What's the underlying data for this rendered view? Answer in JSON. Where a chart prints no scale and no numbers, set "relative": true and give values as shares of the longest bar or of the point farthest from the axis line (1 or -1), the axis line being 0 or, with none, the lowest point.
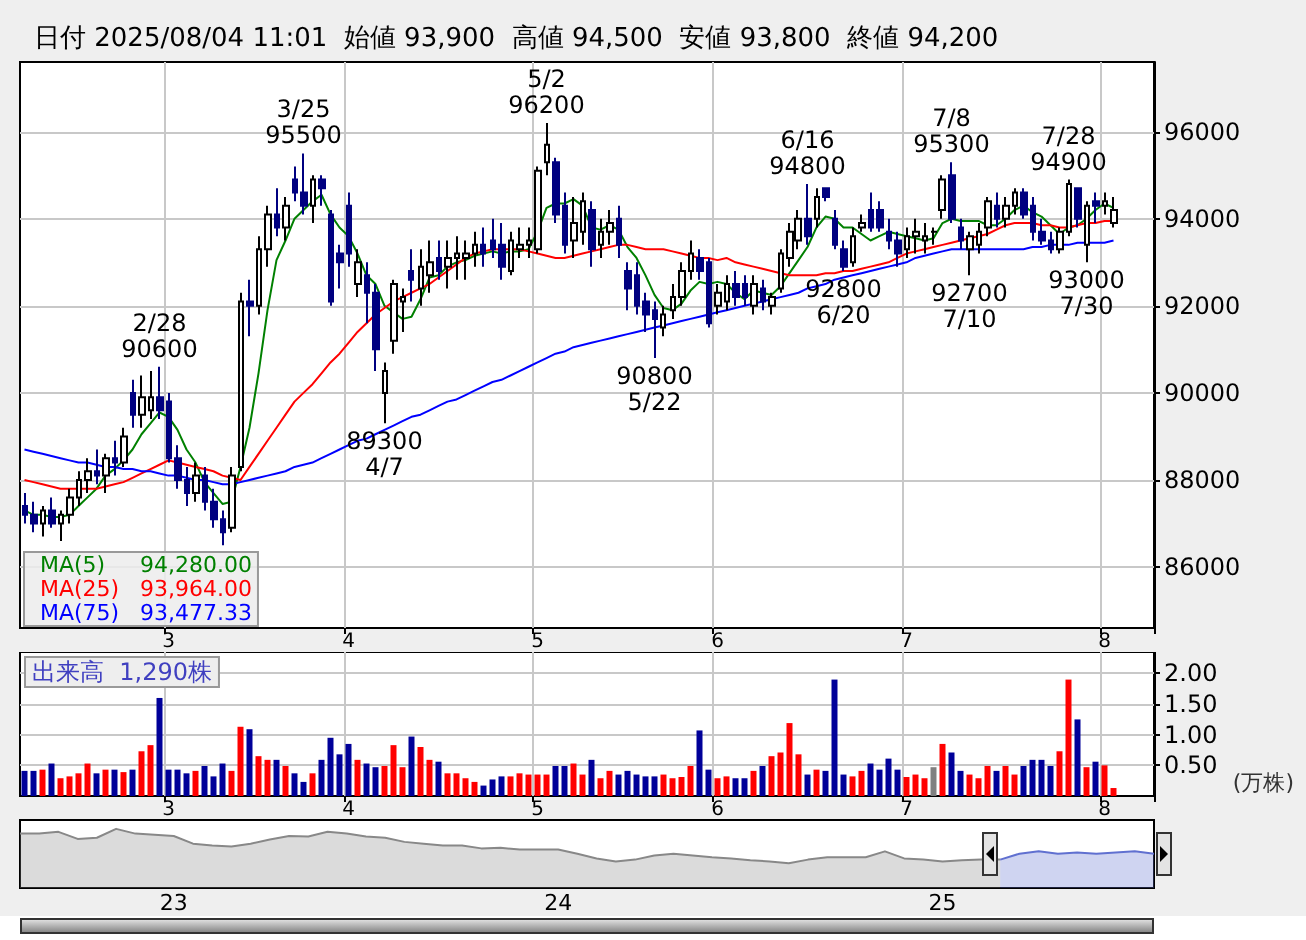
{
  "chart_data": [
    {
      "type": "candlestick",
      "title": "日付 2025/08/04 11:01  始値 93,900  高値 94,500  安値 93,800  終値 94,200",
      "categories": [
        null,
        null,
        null,
        null,
        null,
        null,
        null,
        null,
        null,
        null,
        null,
        null,
        null,
        null,
        null,
        null,
        "3",
        null,
        null,
        null,
        null,
        null,
        null,
        null,
        null,
        null,
        null,
        null,
        null,
        null,
        null,
        null,
        null,
        null,
        null,
        null,
        "4",
        null,
        null,
        null,
        null,
        null,
        null,
        null,
        null,
        null,
        null,
        null,
        null,
        null,
        null,
        null,
        null,
        null,
        null,
        null,
        null,
        "5",
        null,
        null,
        null,
        null,
        null,
        null,
        null,
        null,
        null,
        null,
        null,
        null,
        null,
        null,
        null,
        null,
        null,
        null,
        null,
        "6",
        null,
        null,
        null,
        null,
        null,
        null,
        null,
        null,
        null,
        null,
        null,
        null,
        null,
        null,
        null,
        null,
        null,
        null,
        null,
        null,
        "7",
        null,
        null,
        null,
        null,
        null,
        null,
        null,
        null,
        null,
        null,
        null,
        null,
        null,
        null,
        null,
        null,
        null,
        null,
        null,
        null,
        null,
        "8",
        null
      ],
      "ohlc": [
        [
          87400,
          87700,
          87000,
          87200
        ],
        [
          87200,
          87500,
          86800,
          87000
        ],
        [
          87000,
          87400,
          86700,
          87300
        ],
        [
          87300,
          87600,
          86900,
          87000
        ],
        [
          87000,
          87300,
          86600,
          87200
        ],
        [
          87200,
          87800,
          87000,
          87600
        ],
        [
          87600,
          88200,
          87400,
          88000
        ],
        [
          88000,
          88500,
          87700,
          88200
        ],
        [
          88200,
          88700,
          87900,
          88100
        ],
        [
          88100,
          88600,
          87700,
          88500
        ],
        [
          88500,
          88900,
          88100,
          88400
        ],
        [
          88400,
          89200,
          88300,
          89000
        ],
        [
          90000,
          90300,
          89200,
          89500
        ],
        [
          89500,
          90400,
          89200,
          89900
        ],
        [
          89600,
          90500,
          89400,
          89900
        ],
        [
          89900,
          90600,
          89400,
          89600
        ],
        [
          89800,
          90000,
          88400,
          88500
        ],
        [
          88500,
          88800,
          87800,
          88000
        ],
        [
          88000,
          88300,
          87400,
          87700
        ],
        [
          87700,
          88400,
          87500,
          88100
        ],
        [
          88100,
          88300,
          87300,
          87500
        ],
        [
          87500,
          87800,
          86900,
          87100
        ],
        [
          87100,
          87300,
          86500,
          86800
        ],
        [
          86900,
          88300,
          86800,
          88100
        ],
        [
          88300,
          92300,
          88200,
          92100
        ],
        [
          92100,
          92600,
          91300,
          92000
        ],
        [
          92000,
          93600,
          91800,
          93300
        ],
        [
          93300,
          94300,
          92900,
          94100
        ],
        [
          94100,
          94700,
          93600,
          93800
        ],
        [
          93800,
          94500,
          93500,
          94300
        ],
        [
          94900,
          95200,
          94400,
          94600
        ],
        [
          94600,
          95500,
          94100,
          94300
        ],
        [
          94300,
          95000,
          93900,
          94900
        ],
        [
          94900,
          95000,
          94300,
          94700
        ],
        [
          94100,
          94200,
          92000,
          92100
        ],
        [
          93200,
          93400,
          92400,
          93000
        ],
        [
          94300,
          94600,
          92900,
          93200
        ],
        [
          92500,
          93300,
          92200,
          93000
        ],
        [
          92700,
          93000,
          91600,
          92300
        ],
        [
          92300,
          92500,
          90500,
          91000
        ],
        [
          90000,
          90700,
          89300,
          90500
        ],
        [
          91200,
          92600,
          90900,
          92500
        ],
        [
          92100,
          92400,
          91400,
          92200
        ],
        [
          92800,
          93300,
          92100,
          92600
        ],
        [
          92400,
          93300,
          92000,
          92900
        ],
        [
          92700,
          93500,
          92300,
          93000
        ],
        [
          93100,
          93500,
          92600,
          92800
        ],
        [
          92900,
          93500,
          92400,
          93100
        ],
        [
          93100,
          93600,
          92600,
          93200
        ],
        [
          93100,
          93500,
          92600,
          93200
        ],
        [
          93200,
          93700,
          92900,
          93400
        ],
        [
          93400,
          93800,
          92900,
          93200
        ],
        [
          93500,
          94000,
          93100,
          93300
        ],
        [
          93400,
          93900,
          92600,
          92900
        ],
        [
          92800,
          93700,
          92700,
          93500
        ],
        [
          93300,
          93800,
          93100,
          93400
        ],
        [
          93400,
          93800,
          93100,
          93500
        ],
        [
          93300,
          95200,
          93200,
          95100
        ],
        [
          95300,
          96200,
          95000,
          95700
        ],
        [
          95300,
          95400,
          93900,
          94100
        ],
        [
          94300,
          94600,
          93200,
          93400
        ],
        [
          93500,
          94500,
          93100,
          93900
        ],
        [
          93700,
          94600,
          93400,
          94400
        ],
        [
          94200,
          94400,
          92900,
          93300
        ],
        [
          93400,
          94000,
          93100,
          93700
        ],
        [
          93700,
          94200,
          93400,
          93900
        ],
        [
          94000,
          94300,
          93100,
          93400
        ],
        [
          92800,
          93000,
          91900,
          92400
        ],
        [
          92700,
          93000,
          91800,
          92000
        ],
        [
          92100,
          92300,
          91400,
          91800
        ],
        [
          91900,
          92100,
          90800,
          91700
        ],
        [
          91500,
          92000,
          91300,
          91800
        ],
        [
          91900,
          92500,
          91700,
          92200
        ],
        [
          92200,
          93000,
          92000,
          92800
        ],
        [
          92800,
          93500,
          92600,
          93200
        ],
        [
          93100,
          93300,
          92600,
          92800
        ],
        [
          93000,
          93100,
          91500,
          91600
        ],
        [
          92000,
          92500,
          91800,
          92300
        ],
        [
          92100,
          92700,
          91900,
          92500
        ],
        [
          92500,
          92800,
          92000,
          92200
        ],
        [
          92500,
          92700,
          92000,
          92200
        ],
        [
          92000,
          92700,
          91800,
          92500
        ],
        [
          92400,
          92600,
          91900,
          92100
        ],
        [
          92000,
          92300,
          91800,
          92200
        ],
        [
          92400,
          93300,
          92300,
          93200
        ],
        [
          93100,
          93900,
          92900,
          93700
        ],
        [
          93500,
          94200,
          93300,
          94000
        ],
        [
          94000,
          94800,
          93400,
          93600
        ],
        [
          94000,
          94700,
          93800,
          94500
        ],
        [
          94700,
          94700,
          94400,
          94500
        ],
        [
          94000,
          94200,
          93300,
          93400
        ],
        [
          93300,
          93500,
          92800,
          92900
        ],
        [
          93000,
          93800,
          92900,
          93600
        ],
        [
          93800,
          94100,
          93700,
          93900
        ],
        [
          94200,
          94600,
          93700,
          93800
        ],
        [
          94200,
          94400,
          93700,
          93800
        ],
        [
          93700,
          94000,
          93300,
          93500
        ],
        [
          93500,
          93700,
          92900,
          93200
        ],
        [
          93300,
          93800,
          93100,
          93600
        ],
        [
          93600,
          94000,
          93200,
          93700
        ],
        [
          93500,
          93900,
          93200,
          93600
        ],
        [
          93700,
          93800,
          93400,
          93700
        ],
        [
          94200,
          95000,
          94000,
          94900
        ],
        [
          95000,
          95300,
          93900,
          94000
        ],
        [
          93800,
          94000,
          93300,
          93500
        ],
        [
          93300,
          93700,
          92700,
          93600
        ],
        [
          93400,
          93900,
          93200,
          93700
        ],
        [
          93800,
          94500,
          93600,
          94400
        ],
        [
          94300,
          94600,
          93800,
          94000
        ],
        [
          94000,
          94500,
          93800,
          94300
        ],
        [
          94300,
          94700,
          94100,
          94600
        ],
        [
          94600,
          94700,
          94000,
          94100
        ],
        [
          94300,
          94500,
          93500,
          93700
        ],
        [
          93700,
          94000,
          93400,
          93500
        ],
        [
          93500,
          93700,
          93200,
          93300
        ],
        [
          93300,
          93800,
          93200,
          93700
        ],
        [
          93700,
          94900,
          93600,
          94800
        ],
        [
          94700,
          94700,
          93800,
          94000
        ],
        [
          93400,
          94400,
          93000,
          94300
        ],
        [
          94400,
          94600,
          93900,
          94300
        ],
        [
          94300,
          94600,
          94100,
          94400
        ],
        [
          93900,
          94500,
          93800,
          94200
        ]
      ],
      "series": [
        {
          "name": "MA(5)",
          "type": "line",
          "color": "#008000",
          "values": [
            87300,
            87200,
            87200,
            87150,
            87150,
            87200,
            87400,
            87600,
            87800,
            88100,
            88250,
            88450,
            88700,
            89050,
            89300,
            89550,
            89450,
            89150,
            88700,
            88400,
            87950,
            87700,
            87450,
            87500,
            88300,
            89200,
            90450,
            91900,
            93050,
            93500,
            94000,
            94200,
            94400,
            94550,
            94100,
            93800,
            93600,
            93200,
            92700,
            92500,
            92000,
            91850,
            91700,
            91750,
            92150,
            92650,
            92700,
            92900,
            93000,
            93050,
            93150,
            93200,
            93250,
            93200,
            93250,
            93250,
            93300,
            93700,
            94250,
            94350,
            94350,
            94450,
            94300,
            93800,
            93750,
            93850,
            93750,
            93350,
            93100,
            92700,
            92250,
            91950,
            91900,
            92050,
            92350,
            92550,
            92500,
            92550,
            92500,
            92300,
            92150,
            92350,
            92300,
            92250,
            92450,
            92750,
            93050,
            93350,
            93800,
            94050,
            94000,
            93800,
            93800,
            93650,
            93500,
            93600,
            93700,
            93650,
            93600,
            93550,
            93500,
            93550,
            93900,
            94000,
            93950,
            93950,
            93950,
            93850,
            93850,
            94000,
            94200,
            94300,
            94150,
            94050,
            93850,
            93650,
            93800,
            93850,
            94000,
            94200,
            94350,
            94250
          ]
        },
        {
          "name": "MA(25)",
          "type": "line",
          "color": "#ff0000",
          "values": [
            88000,
            87950,
            87900,
            87850,
            87800,
            87800,
            87800,
            87800,
            87800,
            87850,
            87900,
            87950,
            88050,
            88150,
            88250,
            88350,
            88450,
            88400,
            88350,
            88300,
            88250,
            88200,
            88100,
            88050,
            88000,
            88300,
            88600,
            88900,
            89200,
            89500,
            89800,
            90000,
            90200,
            90450,
            90700,
            90900,
            91150,
            91400,
            91600,
            91800,
            91950,
            92100,
            92200,
            92300,
            92400,
            92500,
            92650,
            92800,
            92950,
            93100,
            93200,
            93250,
            93300,
            93300,
            93300,
            93300,
            93250,
            93200,
            93150,
            93100,
            93100,
            93150,
            93200,
            93250,
            93300,
            93350,
            93400,
            93400,
            93350,
            93300,
            93300,
            93300,
            93250,
            93200,
            93150,
            93100,
            93100,
            93050,
            93100,
            93000,
            92950,
            92900,
            92850,
            92800,
            92750,
            92700,
            92700,
            92700,
            92700,
            92750,
            92750,
            92800,
            92800,
            92850,
            92900,
            92950,
            93000,
            93100,
            93200,
            93250,
            93300,
            93350,
            93400,
            93450,
            93500,
            93550,
            93600,
            93650,
            93750,
            93850,
            93900,
            93900,
            93900,
            93850,
            93850,
            93800,
            93800,
            93850,
            93900,
            93900,
            93950,
            93950
          ]
        },
        {
          "name": "MA(75)",
          "type": "line",
          "color": "#0000ff",
          "values": [
            88700,
            88650,
            88600,
            88550,
            88500,
            88450,
            88400,
            88400,
            88350,
            88300,
            88300,
            88250,
            88250,
            88200,
            88200,
            88150,
            88100,
            88100,
            88050,
            88000,
            88000,
            87950,
            87900,
            87900,
            87950,
            88000,
            88050,
            88100,
            88150,
            88200,
            88300,
            88350,
            88400,
            88500,
            88600,
            88700,
            88800,
            88900,
            88950,
            89050,
            89150,
            89250,
            89350,
            89450,
            89500,
            89600,
            89700,
            89800,
            89850,
            89950,
            90050,
            90150,
            90250,
            90300,
            90400,
            90500,
            90600,
            90700,
            90800,
            90900,
            90950,
            91050,
            91100,
            91150,
            91200,
            91250,
            91300,
            91350,
            91400,
            91450,
            91500,
            91550,
            91600,
            91650,
            91700,
            91750,
            91800,
            91850,
            91900,
            91950,
            92000,
            92050,
            92100,
            92150,
            92200,
            92250,
            92300,
            92400,
            92450,
            92500,
            92600,
            92650,
            92700,
            92750,
            92800,
            92850,
            92900,
            92950,
            93000,
            93100,
            93150,
            93200,
            93250,
            93300,
            93300,
            93300,
            93300,
            93300,
            93300,
            93300,
            93300,
            93300,
            93350,
            93350,
            93400,
            93400,
            93400,
            93450,
            93450,
            93450,
            93450,
            93500
          ]
        }
      ],
      "ylim": [
        84600,
        97600
      ],
      "yticks": [
        86000,
        88000,
        90000,
        92000,
        94000,
        96000
      ],
      "grid": true,
      "legend": "bottom left",
      "marker": "none",
      "annotations": [
        "94,280.00",
        "93,964.00",
        "93,477.33",
        {
          "text": "2/28\n90600",
          "y": 90600
        },
        {
          "text": "3/25\n95500",
          "y": 95500
        },
        {
          "text": "89300\n4/7",
          "y": 89300
        },
        {
          "text": "5/2\n96200",
          "y": 96200
        },
        {
          "text": "90800\n5/22",
          "y": 90800
        },
        {
          "text": "6/16\n94800",
          "y": 94800
        },
        {
          "text": "92800\n6/20",
          "y": 92800
        },
        {
          "text": "7/8\n95300",
          "y": 95300
        },
        {
          "text": "92700\n7/10",
          "y": 92700
        },
        {
          "text": "7/28\n94900",
          "y": 94900
        },
        {
          "text": "93000\n7/30",
          "y": 93000
        }
      ]
    },
    {
      "type": "bar",
      "categories": [
        null,
        null,
        null,
        null,
        null,
        null,
        null,
        null,
        null,
        null,
        null,
        null,
        null,
        null,
        null,
        null,
        "3",
        null,
        null,
        null,
        null,
        null,
        null,
        null,
        null,
        null,
        null,
        null,
        null,
        null,
        null,
        null,
        null,
        null,
        null,
        null,
        "4",
        null,
        null,
        null,
        null,
        null,
        null,
        null,
        null,
        null,
        null,
        null,
        null,
        null,
        null,
        null,
        null,
        null,
        null,
        null,
        null,
        "5",
        null,
        null,
        null,
        null,
        null,
        null,
        null,
        null,
        null,
        null,
        null,
        null,
        null,
        null,
        null,
        null,
        null,
        null,
        null,
        "6",
        null,
        null,
        null,
        null,
        null,
        null,
        null,
        null,
        null,
        null,
        null,
        null,
        null,
        null,
        null,
        null,
        null,
        null,
        null,
        null,
        "7",
        null,
        null,
        null,
        null,
        null,
        null,
        null,
        null,
        null,
        null,
        null,
        null,
        null,
        null,
        null,
        null,
        null,
        null,
        null,
        null,
        null,
        "8",
        null
      ],
      "values": [
        0.41,
        0.41,
        0.43,
        0.53,
        0.29,
        0.32,
        0.37,
        0.53,
        0.37,
        0.43,
        0.43,
        0.39,
        0.43,
        0.73,
        0.83,
        1.6,
        0.43,
        0.43,
        0.37,
        0.41,
        0.49,
        0.32,
        0.53,
        0.41,
        1.13,
        1.09,
        0.65,
        0.59,
        0.59,
        0.49,
        0.37,
        0.23,
        0.37,
        0.59,
        0.95,
        0.68,
        0.85,
        0.59,
        0.53,
        0.47,
        0.49,
        0.83,
        0.47,
        0.97,
        0.8,
        0.59,
        0.56,
        0.37,
        0.37,
        0.29,
        0.23,
        0.17,
        0.27,
        0.32,
        0.32,
        0.37,
        0.35,
        0.35,
        0.35,
        0.49,
        0.49,
        0.53,
        0.35,
        0.59,
        0.29,
        0.41,
        0.35,
        0.41,
        0.35,
        0.32,
        0.32,
        0.35,
        0.29,
        0.31,
        0.49,
        1.07,
        0.43,
        0.29,
        0.32,
        0.29,
        0.29,
        0.41,
        0.49,
        0.65,
        0.71,
        1.19,
        0.68,
        0.35,
        0.43,
        0.41,
        1.9,
        0.35,
        0.32,
        0.41,
        0.53,
        0.43,
        0.61,
        0.43,
        0.31,
        0.35,
        0.29,
        0.47,
        0.85,
        0.71,
        0.41,
        0.35,
        0.29,
        0.49,
        0.41,
        0.49,
        0.35,
        0.49,
        0.59,
        0.59,
        0.49,
        0.73,
        1.9,
        1.25,
        0.47,
        0.56,
        0.5,
        0.13
      ],
      "colors": [
        "#000099",
        "#000099",
        "#ff0000",
        "#000099",
        "#ff0000",
        "#ff0000",
        "#ff0000",
        "#ff0000",
        "#000099",
        "#ff0000",
        "#000099",
        "#ff0000",
        "#000099",
        "#ff0000",
        "#ff0000",
        "#000099",
        "#000099",
        "#000099",
        "#000099",
        "#ff0000",
        "#000099",
        "#000099",
        "#000099",
        "#ff0000",
        "#ff0000",
        "#000099",
        "#ff0000",
        "#ff0000",
        "#000099",
        "#ff0000",
        "#000099",
        "#000099",
        "#ff0000",
        "#000099",
        "#000099",
        "#000099",
        "#000099",
        "#ff0000",
        "#000099",
        "#000099",
        "#ff0000",
        "#ff0000",
        "#ff0000",
        "#000099",
        "#ff0000",
        "#ff0000",
        "#000099",
        "#ff0000",
        "#ff0000",
        "#ff0000",
        "#ff0000",
        "#000099",
        "#000099",
        "#000099",
        "#ff0000",
        "#ff0000",
        "#ff0000",
        "#ff0000",
        "#ff0000",
        "#000099",
        "#000099",
        "#ff0000",
        "#ff0000",
        "#000099",
        "#ff0000",
        "#ff0000",
        "#000099",
        "#000099",
        "#000099",
        "#000099",
        "#000099",
        "#ff0000",
        "#ff0000",
        "#ff0000",
        "#ff0000",
        "#000099",
        "#000099",
        "#ff0000",
        "#ff0000",
        "#000099",
        "#000099",
        "#ff0000",
        "#000099",
        "#ff0000",
        "#ff0000",
        "#ff0000",
        "#ff0000",
        "#000099",
        "#ff0000",
        "#000099",
        "#000099",
        "#000099",
        "#ff0000",
        "#ff0000",
        "#000099",
        "#000099",
        "#000099",
        "#000099",
        "#ff0000",
        "#ff0000",
        "#ff0000",
        "#808080",
        "#ff0000",
        "#000099",
        "#000099",
        "#ff0000",
        "#ff0000",
        "#ff0000",
        "#000099",
        "#ff0000",
        "#ff0000",
        "#000099",
        "#000099",
        "#000099",
        "#000099",
        "#ff0000",
        "#ff0000",
        "#000099",
        "#ff0000",
        "#000099",
        "#ff0000",
        "#ff0000"
      ],
      "ylim": [
        0,
        2.35
      ],
      "yticks": [
        {
          "value": 0.5,
          "label": "0.50"
        },
        {
          "value": 1,
          "label": "1.00"
        },
        {
          "value": 1.5,
          "label": "1.50"
        },
        {
          "value": 2,
          "label": "2.00"
        }
      ],
      "ylabel": "(万株)",
      "grid": true,
      "annotations": [
        "出来高  1,290株"
      ]
    },
    {
      "type": "area",
      "relative": true,
      "tick_labels": "x",
      "categories": [
        null,
        null,
        null,
        null,
        null,
        null,
        null,
        null,
        "23",
        null,
        null,
        null,
        null,
        null,
        null,
        null,
        null,
        null,
        null,
        null,
        null,
        null,
        null,
        null,
        null,
        null,
        null,
        null,
        "24",
        null,
        null,
        null,
        null,
        null,
        null,
        null,
        null,
        null,
        null,
        null,
        null,
        null,
        null,
        null,
        null,
        null,
        null,
        null,
        "25",
        null,
        null,
        null,
        null,
        null,
        null,
        null,
        null,
        null,
        null,
        null
      ],
      "series": [
        {
          "color": "#888888",
          "values": [
            0.92,
            0.92,
            0.95,
            0.83,
            0.85,
            1,
            0.92,
            0.9,
            0.88,
            0.75,
            0.72,
            0.7,
            0.75,
            0.82,
            0.88,
            0.87,
            0.95,
            0.92,
            0.87,
            0.85,
            0.78,
            0.75,
            0.72,
            0.72,
            0.67,
            0.68,
            0.65,
            0.65,
            0.65,
            0.58,
            0.5,
            0.45,
            0.48,
            0.55,
            0.58,
            0.55,
            0.52,
            0.5,
            0.47,
            0.45,
            0.42,
            0.48,
            0.52,
            0.52,
            0.52,
            0.62,
            0.5,
            0.48,
            0.45,
            0.47,
            0.48,
            0.48,
            null,
            null,
            null,
            null,
            null,
            null,
            null,
            null
          ]
        },
        {
          "color": "#6070d0",
          "values": [
            null,
            null,
            null,
            null,
            null,
            null,
            null,
            null,
            null,
            null,
            null,
            null,
            null,
            null,
            null,
            null,
            null,
            null,
            null,
            null,
            null,
            null,
            null,
            null,
            null,
            null,
            null,
            null,
            null,
            null,
            null,
            null,
            null,
            null,
            null,
            null,
            null,
            null,
            null,
            null,
            null,
            null,
            null,
            null,
            null,
            null,
            null,
            null,
            null,
            null,
            null,
            0.48,
            0.58,
            0.62,
            0.58,
            0.6,
            0.58,
            0.6,
            0.62,
            0.58
          ]
        }
      ]
    }
  ]
}
